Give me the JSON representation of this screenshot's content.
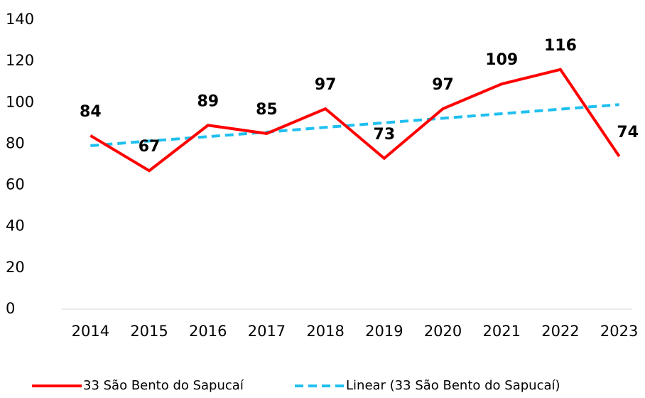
{
  "chart_data": {
    "type": "line",
    "categories": [
      "2014",
      "2015",
      "2016",
      "2017",
      "2018",
      "2019",
      "2020",
      "2021",
      "2022",
      "2023"
    ],
    "series": [
      {
        "name": "33 São Bento do Sapucaí",
        "color": "#ff0000",
        "style": "solid",
        "values": [
          84,
          67,
          89,
          85,
          97,
          73,
          97,
          109,
          116,
          74
        ],
        "labels": true
      },
      {
        "name": "Linear (33 São Bento do Sapucaí)",
        "color": "#1fc0f0",
        "style": "dashed",
        "values": [
          79.1,
          81.4,
          83.5,
          85.7,
          88.0,
          90.2,
          92.4,
          94.6,
          96.8,
          99.0
        ],
        "labels": false
      }
    ],
    "ylim": [
      0,
      140
    ],
    "yticks": [
      0,
      20,
      40,
      60,
      80,
      100,
      120,
      140
    ],
    "grid": false,
    "legend": "bottom"
  }
}
